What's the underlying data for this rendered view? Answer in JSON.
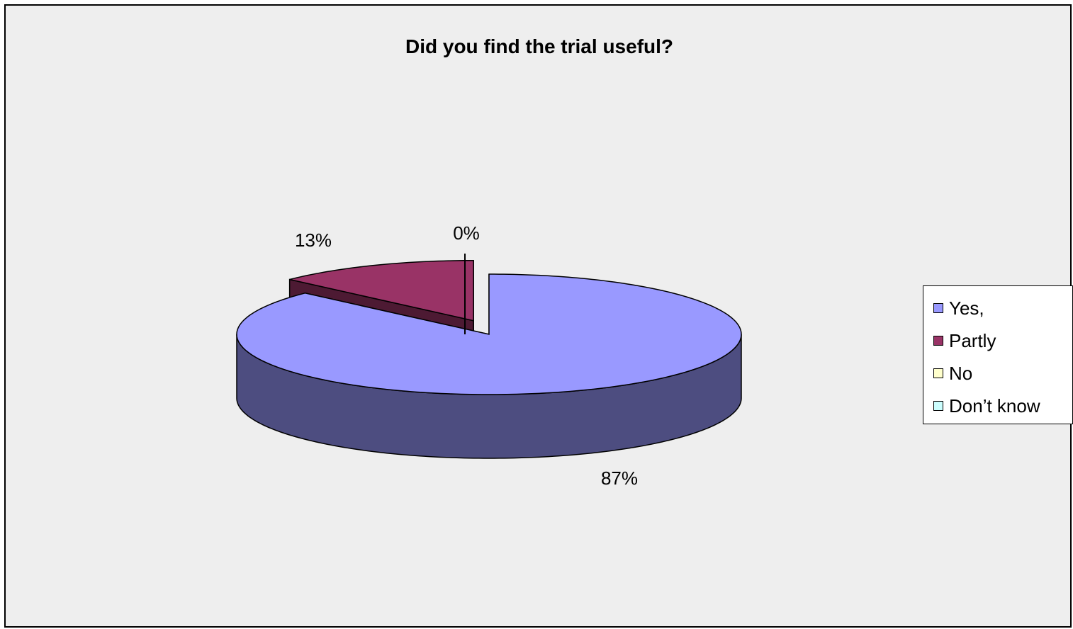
{
  "chart_data": {
    "type": "pie",
    "title": "Did you find the trial useful?",
    "categories": [
      "Yes,",
      "Partly",
      "No",
      "Don’t know"
    ],
    "values": [
      87,
      13,
      0,
      0
    ],
    "data_labels": [
      "87%",
      "13%",
      "0%",
      ""
    ],
    "colors": [
      "#9999ff",
      "#993366",
      "#ffffcc",
      "#ccffff"
    ],
    "side_colors": [
      "#4d4d80",
      "#4d1a33",
      "#80806a",
      "#6a8080"
    ],
    "legend_position": "right",
    "three_d": true,
    "exploded": true
  }
}
